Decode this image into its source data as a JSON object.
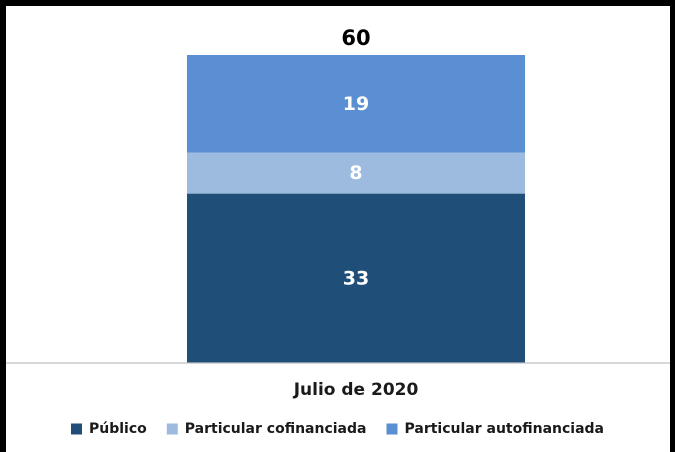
{
  "chart_data": {
    "type": "bar",
    "stacked": true,
    "categories": [
      "Julio de 2020"
    ],
    "series": [
      {
        "name": "Público",
        "values": [
          33
        ],
        "color": "#1f4e79"
      },
      {
        "name": "Particular cofinanciada",
        "values": [
          8
        ],
        "color": "#9dbbde"
      },
      {
        "name": "Particular autofinanciada",
        "values": [
          19
        ],
        "color": "#5b8fd4"
      }
    ],
    "totals": [
      60
    ],
    "ylim": [
      0,
      60
    ],
    "grid": false,
    "legend": "bottom"
  }
}
